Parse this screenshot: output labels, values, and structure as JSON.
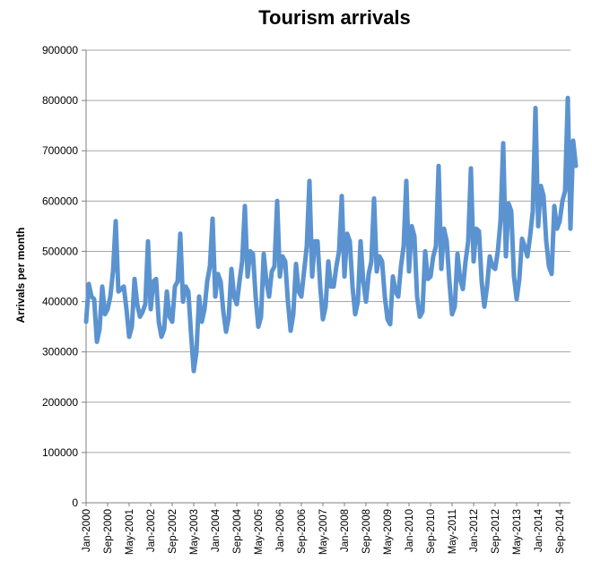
{
  "chart_data": {
    "type": "line",
    "title": "Tourism arrivals",
    "xlabel": "",
    "ylabel": "Arrivals per month",
    "ylim": [
      0,
      900000
    ],
    "yticks": [
      "0",
      "100000",
      "200000",
      "300000",
      "400000",
      "500000",
      "600000",
      "700000",
      "800000",
      "900000"
    ],
    "grid": "horizontal",
    "legend": "none",
    "line_color": "#5b93d0",
    "xticks": [
      "Jan-2000",
      "Sep-2000",
      "May-2001",
      "Jan-2002",
      "Sep-2002",
      "May-2003",
      "Jan-2004",
      "Sep-2004",
      "May-2005",
      "Jan-2006",
      "Sep-2006",
      "May-2007",
      "Jan-2008",
      "Sep-2008",
      "May-2009",
      "Jan-2010",
      "Sep-2010",
      "May-2011",
      "Jan-2012",
      "Sep-2012",
      "May-2013",
      "Jan-2014",
      "Sep-2014"
    ],
    "series": [
      {
        "values": [
          360000,
          435000,
          410000,
          405000,
          320000,
          345000,
          430000,
          375000,
          385000,
          410000,
          460000,
          560000,
          420000,
          425000,
          430000,
          385000,
          330000,
          350000,
          445000,
          395000,
          370000,
          380000,
          395000,
          520000,
          385000,
          440000,
          445000,
          360000,
          330000,
          345000,
          420000,
          370000,
          360000,
          430000,
          440000,
          535000,
          400000,
          430000,
          420000,
          335000,
          262000,
          300000,
          410000,
          360000,
          385000,
          440000,
          470000,
          565000,
          410000,
          455000,
          440000,
          380000,
          340000,
          370000,
          465000,
          410000,
          395000,
          440000,
          480000,
          590000,
          450000,
          500000,
          495000,
          410000,
          350000,
          370000,
          495000,
          440000,
          410000,
          460000,
          470000,
          600000,
          450000,
          490000,
          480000,
          400000,
          342000,
          375000,
          475000,
          420000,
          410000,
          460000,
          510000,
          640000,
          450000,
          520000,
          520000,
          430000,
          365000,
          390000,
          480000,
          430000,
          430000,
          470000,
          500000,
          610000,
          450000,
          535000,
          520000,
          430000,
          375000,
          400000,
          520000,
          440000,
          400000,
          455000,
          480000,
          605000,
          460000,
          490000,
          480000,
          410000,
          365000,
          355000,
          450000,
          420000,
          410000,
          470000,
          510000,
          640000,
          460000,
          550000,
          530000,
          410000,
          370000,
          380000,
          500000,
          445000,
          450000,
          490000,
          510000,
          670000,
          465000,
          545000,
          520000,
          440000,
          375000,
          390000,
          495000,
          445000,
          425000,
          480000,
          520000,
          665000,
          480000,
          545000,
          540000,
          440000,
          390000,
          430000,
          490000,
          470000,
          465000,
          500000,
          560000,
          715000,
          490000,
          595000,
          580000,
          450000,
          405000,
          445000,
          525000,
          510000,
          490000,
          530000,
          580000,
          785000,
          550000,
          630000,
          610000,
          520000,
          470000,
          455000,
          590000,
          545000,
          560000,
          600000,
          620000,
          805000,
          545000,
          720000,
          670000
        ]
      }
    ]
  }
}
